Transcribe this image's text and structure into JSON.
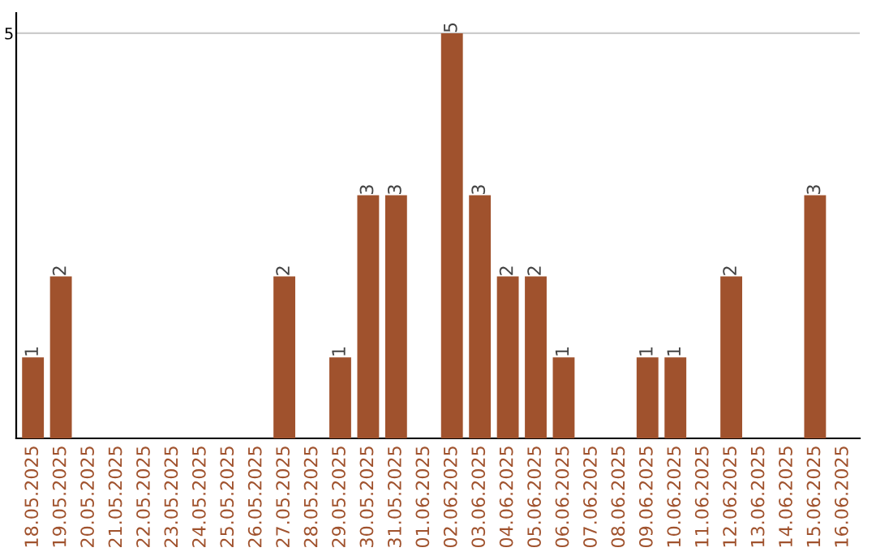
{
  "chart_data": {
    "type": "bar",
    "categories": [
      "18.05.2025",
      "19.05.2025",
      "20.05.2025",
      "21.05.2025",
      "22.05.2025",
      "23.05.2025",
      "24.05.2025",
      "25.05.2025",
      "26.05.2025",
      "27.05.2025",
      "28.05.2025",
      "29.05.2025",
      "30.05.2025",
      "31.05.2025",
      "01.06.2025",
      "02.06.2025",
      "03.06.2025",
      "04.06.2025",
      "05.06.2025",
      "06.06.2025",
      "07.06.2025",
      "08.06.2025",
      "09.06.2025",
      "10.06.2025",
      "11.06.2025",
      "12.06.2025",
      "13.06.2025",
      "14.06.2025",
      "15.06.2025",
      "16.06.2025"
    ],
    "values": [
      1,
      2,
      0,
      0,
      0,
      0,
      0,
      0,
      0,
      2,
      0,
      1,
      3,
      3,
      0,
      5,
      3,
      2,
      2,
      1,
      0,
      0,
      1,
      1,
      0,
      2,
      0,
      0,
      3,
      0
    ],
    "value_labels": [
      "1",
      "2",
      null,
      null,
      null,
      null,
      null,
      null,
      null,
      "2",
      null,
      "1",
      "3",
      "3",
      null,
      "5",
      "3",
      "2",
      "2",
      "1",
      null,
      null,
      "1",
      "1",
      null,
      "2",
      null,
      null,
      "3",
      null
    ],
    "color": "#a0522d",
    "ylim": [
      0,
      5.25
    ],
    "yticks": [
      5
    ],
    "grid": "y"
  }
}
